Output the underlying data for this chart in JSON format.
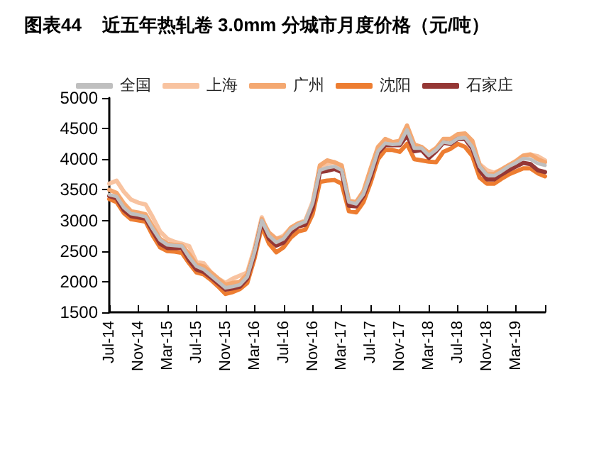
{
  "chart_data": {
    "type": "line",
    "title": "图表44    近五年热轧卷 3.0mm 分城市月度价格（元/吨）",
    "categories": [
      "Jul-14",
      null,
      null,
      null,
      "Nov-14",
      null,
      null,
      null,
      "Mar-15",
      null,
      null,
      null,
      "Jul-15",
      null,
      null,
      null,
      "Nov-15",
      null,
      null,
      null,
      "Mar-16",
      null,
      null,
      null,
      "Jul-16",
      null,
      null,
      null,
      "Nov-16",
      null,
      null,
      null,
      "Mar-17",
      null,
      null,
      null,
      "Jul-17",
      null,
      null,
      null,
      "Nov-17",
      null,
      null,
      null,
      "Mar-18",
      null,
      null,
      null,
      "Jul-18",
      null,
      null,
      null,
      "Nov-18",
      null,
      null,
      null,
      "Mar-19",
      null,
      null,
      null,
      null
    ],
    "series": [
      {
        "name": "全国",
        "color": "#bfbfbf",
        "values": [
          3420,
          3390,
          3210,
          3110,
          3090,
          3060,
          2860,
          2680,
          2600,
          2590,
          2580,
          2400,
          2250,
          2200,
          2100,
          2000,
          1900,
          1920,
          1950,
          2080,
          2480,
          3000,
          2750,
          2640,
          2700,
          2850,
          2930,
          2980,
          3280,
          3820,
          3860,
          3880,
          3820,
          3300,
          3270,
          3430,
          3760,
          4130,
          4260,
          4240,
          4250,
          4480,
          4180,
          4180,
          4060,
          4150,
          4280,
          4260,
          4340,
          4350,
          4200,
          3880,
          3740,
          3730,
          3800,
          3880,
          3940,
          4010,
          4000,
          3930,
          3900
        ]
      },
      {
        "name": "上海",
        "color": "#f8c3a0",
        "values": [
          3600,
          3650,
          3470,
          3340,
          3290,
          3260,
          3050,
          2820,
          2700,
          2650,
          2620,
          2580,
          2320,
          2300,
          2150,
          2050,
          1980,
          2050,
          2100,
          2150,
          2550,
          3050,
          2760,
          2700,
          2750,
          2880,
          2950,
          3000,
          3300,
          3880,
          3920,
          3950,
          3880,
          3300,
          3280,
          3450,
          3800,
          4150,
          4300,
          4280,
          4270,
          4450,
          4200,
          4200,
          4100,
          4180,
          4300,
          4290,
          4400,
          4380,
          4220,
          3920,
          3820,
          3780,
          3830,
          3900,
          3960,
          4050,
          4070,
          4050,
          3980
        ]
      },
      {
        "name": "广州",
        "color": "#f4a871",
        "values": [
          3500,
          3450,
          3280,
          3150,
          3130,
          3100,
          2900,
          2700,
          2620,
          2600,
          2590,
          2450,
          2280,
          2250,
          2150,
          2050,
          1950,
          1980,
          2000,
          2120,
          2500,
          3020,
          2800,
          2700,
          2720,
          2880,
          2950,
          2980,
          3250,
          3900,
          3980,
          3950,
          3900,
          3320,
          3300,
          3480,
          3850,
          4200,
          4330,
          4280,
          4300,
          4550,
          4240,
          4200,
          4100,
          4180,
          4330,
          4330,
          4410,
          4420,
          4300,
          3900,
          3750,
          3760,
          3830,
          3900,
          3970,
          4060,
          4080,
          4000,
          3950
        ]
      },
      {
        "name": "沈阳",
        "color": "#ed7d31",
        "values": [
          3350,
          3300,
          3120,
          3020,
          3000,
          2980,
          2750,
          2560,
          2500,
          2490,
          2470,
          2300,
          2150,
          2120,
          2030,
          1920,
          1800,
          1830,
          1880,
          1980,
          2380,
          2900,
          2620,
          2480,
          2560,
          2720,
          2820,
          2850,
          3100,
          3630,
          3650,
          3660,
          3600,
          3150,
          3130,
          3300,
          3620,
          4000,
          4150,
          4150,
          4120,
          4250,
          4000,
          3980,
          3960,
          3950,
          4120,
          4170,
          4250,
          4200,
          4050,
          3700,
          3600,
          3600,
          3680,
          3750,
          3800,
          3850,
          3850,
          3770,
          3720
        ]
      },
      {
        "name": "石家庄",
        "color": "#953735",
        "values": [
          3400,
          3360,
          3170,
          3070,
          3050,
          3030,
          2820,
          2620,
          2550,
          2550,
          2550,
          2350,
          2200,
          2160,
          2070,
          1970,
          1870,
          1890,
          1920,
          2050,
          2450,
          2980,
          2700,
          2590,
          2640,
          2800,
          2900,
          2930,
          3200,
          3790,
          3810,
          3840,
          3790,
          3240,
          3230,
          3400,
          3710,
          4100,
          4230,
          4230,
          4230,
          4390,
          4130,
          4150,
          4020,
          4130,
          4270,
          4250,
          4330,
          4330,
          4170,
          3820,
          3670,
          3670,
          3750,
          3820,
          3880,
          3940,
          3920,
          3820,
          3790
        ]
      }
    ],
    "ylim": [
      1500,
      5000
    ],
    "yticks": [
      1500,
      2000,
      2500,
      3000,
      3500,
      4000,
      4500,
      5000
    ],
    "legend": "top",
    "marker": "none",
    "line_style": "solid"
  }
}
